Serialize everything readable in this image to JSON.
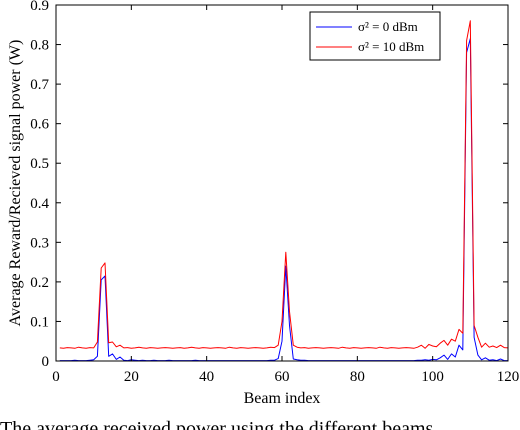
{
  "chart_data": {
    "type": "line",
    "xlabel": "Beam index",
    "ylabel": "Average Reward/Recieved signal power (W)",
    "xlim": [
      0,
      120
    ],
    "ylim": [
      0,
      0.9
    ],
    "xticks": [
      0,
      20,
      40,
      60,
      80,
      100,
      120
    ],
    "yticks": [
      0,
      0.1,
      0.2,
      0.3,
      0.4,
      0.5,
      0.6,
      0.7,
      0.8,
      0.9
    ],
    "xtick_labels": [
      "0",
      "20",
      "40",
      "60",
      "80",
      "100",
      "120"
    ],
    "ytick_labels": [
      "0",
      "0.1",
      "0.2",
      "0.3",
      "0.4",
      "0.5",
      "0.6",
      "0.7",
      "0.8",
      "0.9"
    ],
    "grid": false,
    "legend_position": "top-right",
    "series": [
      {
        "name": "σ² = 0 dBm",
        "color": "#0000ff",
        "x": [
          1,
          2,
          3,
          4,
          5,
          6,
          7,
          8,
          9,
          10,
          11,
          12,
          13,
          14,
          15,
          16,
          17,
          18,
          19,
          20,
          21,
          22,
          23,
          24,
          25,
          26,
          27,
          28,
          29,
          30,
          31,
          32,
          33,
          34,
          35,
          36,
          37,
          38,
          39,
          40,
          41,
          42,
          43,
          44,
          45,
          46,
          47,
          48,
          49,
          50,
          51,
          52,
          53,
          54,
          55,
          56,
          57,
          58,
          59,
          60,
          61,
          62,
          63,
          64,
          65,
          66,
          67,
          68,
          69,
          70,
          71,
          72,
          73,
          74,
          75,
          76,
          77,
          78,
          79,
          80,
          81,
          82,
          83,
          84,
          85,
          86,
          87,
          88,
          89,
          90,
          91,
          92,
          93,
          94,
          95,
          96,
          97,
          98,
          99,
          100,
          101,
          102,
          103,
          104,
          105,
          106,
          107,
          108,
          109,
          110,
          111,
          112,
          113,
          114,
          115,
          116,
          117,
          118,
          119,
          120
        ],
        "y": [
          0.001,
          0.001,
          0.001,
          0.001,
          0.002,
          0.001,
          0.001,
          0.001,
          0.002,
          0.003,
          0.012,
          0.205,
          0.215,
          0.012,
          0.018,
          0.004,
          0.01,
          0.002,
          0.001,
          0.003,
          0.002,
          0.001,
          0.002,
          0.001,
          0.001,
          0.002,
          0.001,
          0.001,
          0.001,
          0.002,
          0.001,
          0.001,
          0.001,
          0.001,
          0.001,
          0.001,
          0.002,
          0.001,
          0.001,
          0.001,
          0.001,
          0.001,
          0.001,
          0.001,
          0.001,
          0.001,
          0.001,
          0.001,
          0.001,
          0.001,
          0.001,
          0.001,
          0.001,
          0.001,
          0.001,
          0.001,
          0.002,
          0.002,
          0.006,
          0.05,
          0.24,
          0.09,
          0.005,
          0.003,
          0.002,
          0.002,
          0.001,
          0.001,
          0.001,
          0.001,
          0.001,
          0.001,
          0.001,
          0.001,
          0.001,
          0.001,
          0.001,
          0.001,
          0.001,
          0.001,
          0.001,
          0.001,
          0.001,
          0.001,
          0.001,
          0.001,
          0.001,
          0.001,
          0.001,
          0.001,
          0.001,
          0.001,
          0.001,
          0.001,
          0.001,
          0.002,
          0.002,
          0.003,
          0.002,
          0.004,
          0.003,
          0.008,
          0.015,
          0.004,
          0.018,
          0.01,
          0.04,
          0.028,
          0.78,
          0.815,
          0.06,
          0.015,
          0.003,
          0.008,
          0.002,
          0.003,
          0.001,
          0.005,
          0.001,
          0.001
        ]
      },
      {
        "name": "σ² = 10 dBm",
        "color": "#ff0000",
        "x": [
          1,
          2,
          3,
          4,
          5,
          6,
          7,
          8,
          9,
          10,
          11,
          12,
          13,
          14,
          15,
          16,
          17,
          18,
          19,
          20,
          21,
          22,
          23,
          24,
          25,
          26,
          27,
          28,
          29,
          30,
          31,
          32,
          33,
          34,
          35,
          36,
          37,
          38,
          39,
          40,
          41,
          42,
          43,
          44,
          45,
          46,
          47,
          48,
          49,
          50,
          51,
          52,
          53,
          54,
          55,
          56,
          57,
          58,
          59,
          60,
          61,
          62,
          63,
          64,
          65,
          66,
          67,
          68,
          69,
          70,
          71,
          72,
          73,
          74,
          75,
          76,
          77,
          78,
          79,
          80,
          81,
          82,
          83,
          84,
          85,
          86,
          87,
          88,
          89,
          90,
          91,
          92,
          93,
          94,
          95,
          96,
          97,
          98,
          99,
          100,
          101,
          102,
          103,
          104,
          105,
          106,
          107,
          108,
          109,
          110,
          111,
          112,
          113,
          114,
          115,
          116,
          117,
          118,
          119,
          120
        ],
        "y": [
          0.033,
          0.032,
          0.034,
          0.033,
          0.032,
          0.035,
          0.033,
          0.032,
          0.034,
          0.033,
          0.048,
          0.235,
          0.248,
          0.046,
          0.048,
          0.036,
          0.04,
          0.033,
          0.034,
          0.032,
          0.033,
          0.035,
          0.033,
          0.032,
          0.034,
          0.033,
          0.032,
          0.033,
          0.034,
          0.033,
          0.032,
          0.033,
          0.034,
          0.032,
          0.033,
          0.035,
          0.033,
          0.032,
          0.034,
          0.033,
          0.032,
          0.033,
          0.034,
          0.033,
          0.032,
          0.035,
          0.033,
          0.032,
          0.034,
          0.033,
          0.032,
          0.033,
          0.034,
          0.033,
          0.032,
          0.033,
          0.035,
          0.034,
          0.04,
          0.1,
          0.275,
          0.125,
          0.04,
          0.035,
          0.033,
          0.034,
          0.032,
          0.033,
          0.034,
          0.033,
          0.032,
          0.033,
          0.034,
          0.033,
          0.032,
          0.035,
          0.033,
          0.032,
          0.034,
          0.033,
          0.032,
          0.033,
          0.034,
          0.033,
          0.032,
          0.035,
          0.033,
          0.032,
          0.034,
          0.033,
          0.032,
          0.033,
          0.034,
          0.033,
          0.032,
          0.035,
          0.04,
          0.032,
          0.042,
          0.038,
          0.036,
          0.045,
          0.052,
          0.04,
          0.055,
          0.05,
          0.08,
          0.07,
          0.81,
          0.86,
          0.09,
          0.06,
          0.035,
          0.045,
          0.035,
          0.038,
          0.034,
          0.04,
          0.034,
          0.033
        ]
      }
    ]
  },
  "caption": {
    "text": "The average received power using the different beams"
  }
}
